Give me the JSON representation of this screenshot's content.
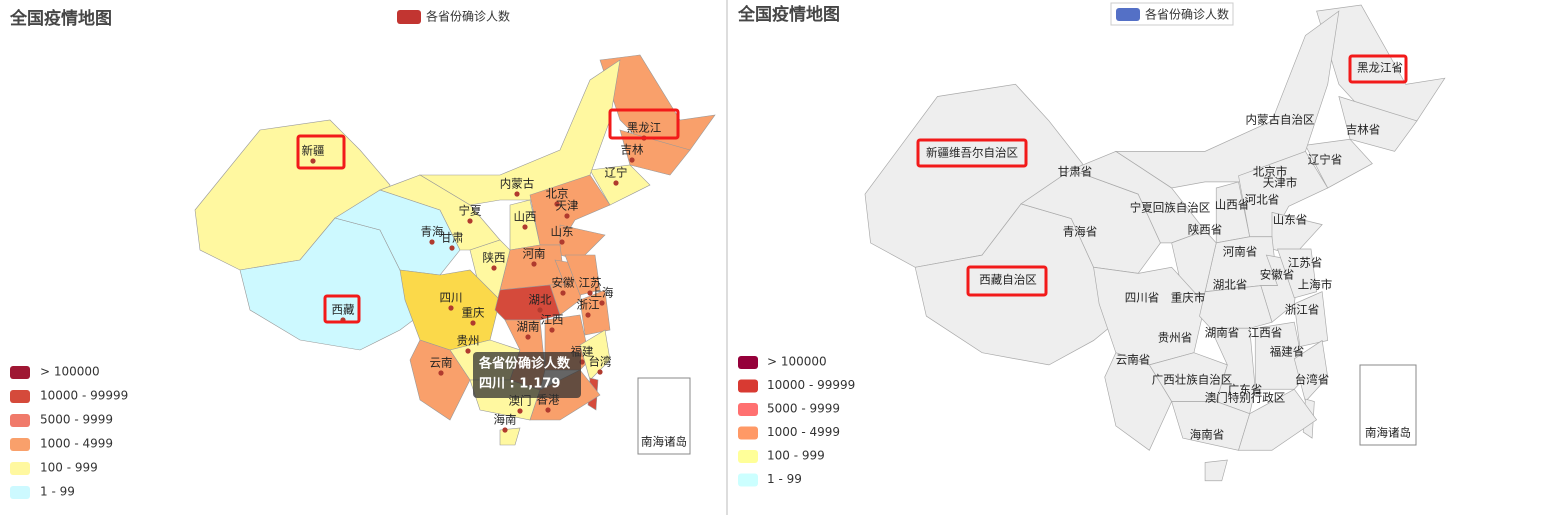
{
  "left": {
    "title": "全国疫情地图",
    "legend": "各省份确诊人数",
    "legend_color": "#c23531",
    "pieces": [
      {
        "label": "> 100000",
        "color": "#9f1733"
      },
      {
        "label": "10000 - 99999",
        "color": "#d54a3b"
      },
      {
        "label": "5000 - 9999",
        "color": "#f07a6a"
      },
      {
        "label": "1000 - 4999",
        "color": "#f9a06b"
      },
      {
        "label": "100 - 999",
        "color": "#fff8a0"
      },
      {
        "label": "1 - 99",
        "color": "#cdf9ff"
      }
    ],
    "provinces": [
      {
        "name": "新疆",
        "color": "#fff8a0"
      },
      {
        "name": "西藏",
        "color": "#cdf9ff"
      },
      {
        "name": "黑龙江",
        "color": "#f9a06b"
      },
      {
        "name": "吉林",
        "color": "#f9a06b"
      },
      {
        "name": "辽宁",
        "color": "#fff8a0"
      },
      {
        "name": "内蒙古",
        "color": "#fff8a0"
      },
      {
        "name": "北京",
        "color": "#f9a06b"
      },
      {
        "name": "天津"
      },
      {
        "name": "宁夏"
      },
      {
        "name": "山西",
        "color": "#fff8a0"
      },
      {
        "name": "青海",
        "color": "#cdf9ff"
      },
      {
        "name": "甘肃",
        "color": "#fff8a0"
      },
      {
        "name": "山东",
        "color": "#f9a06b"
      },
      {
        "name": "河南",
        "color": "#f9a06b"
      },
      {
        "name": "陕西",
        "color": "#fff8a0"
      },
      {
        "name": "安徽",
        "color": "#f9a06b"
      },
      {
        "name": "江苏",
        "color": "#f9a06b"
      },
      {
        "name": "上海"
      },
      {
        "name": "四川",
        "color": "#fbd94a"
      },
      {
        "name": "湖北",
        "color": "#d54a3b"
      },
      {
        "name": "重庆"
      },
      {
        "name": "浙江",
        "color": "#f9a06b"
      },
      {
        "name": "贵州",
        "color": "#fff8a0"
      },
      {
        "name": "湖南",
        "color": "#f9a06b"
      },
      {
        "name": "江西",
        "color": "#f9a06b"
      },
      {
        "name": "云南",
        "color": "#fff8a0"
      },
      {
        "name": "福建",
        "color": "#f9a06b"
      },
      {
        "name": "台湾",
        "color": "#d54a3b"
      },
      {
        "name": "澳门",
        "color": "#fff8a0"
      },
      {
        "name": "香港",
        "color": "#f9a06b"
      },
      {
        "name": "海南",
        "color": "#fff8a0"
      }
    ],
    "tooltip": {
      "title": "各省份确诊人数",
      "line": "四川 : 1,179"
    },
    "island": "南海诸岛"
  },
  "right": {
    "title": "全国疫情地图",
    "legend": "各省份确诊人数",
    "legend_color": "#5470c6",
    "pieces": [
      {
        "label": "> 100000",
        "color": "#95003a"
      },
      {
        "label": "10000 - 99999",
        "color": "#d83a32"
      },
      {
        "label": "5000 - 9999",
        "color": "#ff7070"
      },
      {
        "label": "1000 - 4999",
        "color": "#ff9966"
      },
      {
        "label": "100 - 999",
        "color": "#ffff99"
      },
      {
        "label": "1 - 99",
        "color": "#ccffff"
      }
    ],
    "provinces": [
      "黑龙江省",
      "内蒙古自治区",
      "吉林省",
      "新疆维吾尔自治区",
      "甘肃省",
      "北京市",
      "天津市",
      "辽宁省",
      "河北省",
      "宁夏回族自治区",
      "山西省",
      "青海省",
      "陕西省",
      "山东省",
      "河南省",
      "江苏省",
      "安徽省",
      "西藏自治区",
      "湖北省",
      "上海市",
      "四川省",
      "重庆市",
      "浙江省",
      "贵州省",
      "湖南省",
      "江西省",
      "福建省",
      "云南省",
      "广西壮族自治区",
      "台湾省",
      "广东省",
      "澳门特别行政区",
      "海南省"
    ],
    "map_color": "#eeeeee",
    "island": "南海诸岛"
  }
}
